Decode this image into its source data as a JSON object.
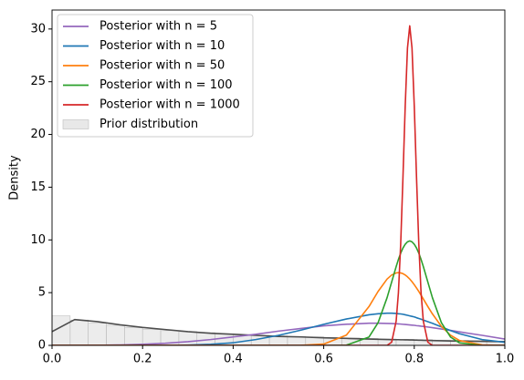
{
  "chart_data": {
    "type": "line",
    "ylabel": "Density",
    "xlim": [
      0,
      1
    ],
    "ylim": [
      0,
      31.8
    ],
    "xticks": [
      {
        "value": 0,
        "label": "0.0"
      },
      {
        "value": 0.2,
        "label": "0.2"
      },
      {
        "value": 0.4,
        "label": "0.4"
      },
      {
        "value": 0.6,
        "label": "0.6"
      },
      {
        "value": 0.8,
        "label": "0.8"
      },
      {
        "value": 1,
        "label": "1.0"
      }
    ],
    "yticks": [
      0,
      5,
      10,
      15,
      20,
      25,
      30
    ],
    "legend": "upper left",
    "x": [
      0,
      0.05,
      0.1,
      0.15,
      0.2,
      0.25,
      0.3,
      0.35,
      0.4,
      0.45,
      0.5,
      0.55,
      0.6,
      0.65,
      0.7,
      0.72,
      0.74,
      0.75,
      0.76,
      0.765,
      0.77,
      0.775,
      0.78,
      0.785,
      0.79,
      0.795,
      0.8,
      0.805,
      0.81,
      0.815,
      0.82,
      0.83,
      0.84,
      0.86,
      0.88,
      0.9,
      0.95,
      1.0
    ],
    "histogram": {
      "name": "Prior distribution",
      "color": "#d9d9d9",
      "edgecolor": "#bdbdbd",
      "bins": [
        0,
        0.04,
        0.08,
        0.12,
        0.16,
        0.2,
        0.24,
        0.28,
        0.32,
        0.36,
        0.4,
        0.44,
        0.48,
        0.52,
        0.56,
        0.6,
        0.64,
        0.68,
        0.72,
        0.76,
        0.8,
        0.84,
        0.88,
        0.92,
        0.96,
        1.0
      ],
      "values": [
        2.8,
        2.4,
        2.1,
        1.9,
        1.7,
        1.5,
        1.4,
        1.3,
        1.2,
        1.1,
        1.0,
        0.95,
        0.9,
        0.85,
        0.8,
        0.75,
        0.7,
        0.65,
        0.6,
        0.57,
        0.54,
        0.5,
        0.47,
        0.44,
        0.4
      ]
    },
    "series": [
      {
        "color": "#4d4d4d",
        "values": [
          1.3,
          2.45,
          2.25,
          1.95,
          1.7,
          1.5,
          1.3,
          1.15,
          1.05,
          0.95,
          0.85,
          0.8,
          0.72,
          0.66,
          0.6,
          0.58,
          0.56,
          0.55,
          0.54,
          0.54,
          0.53,
          0.53,
          0.52,
          0.52,
          0.51,
          0.51,
          0.5,
          0.5,
          0.49,
          0.49,
          0.48,
          0.47,
          0.46,
          0.44,
          0.42,
          0.41,
          0.38,
          0.35
        ]
      },
      {
        "name": "Posterior with n = 5",
        "color": "#9467bd",
        "values": [
          0,
          0,
          0.01,
          0.04,
          0.1,
          0.2,
          0.35,
          0.55,
          0.8,
          1.05,
          1.35,
          1.6,
          1.85,
          2.0,
          2.1,
          2.1,
          2.08,
          2.07,
          2.05,
          2.04,
          2.02,
          2.0,
          1.98,
          1.96,
          1.94,
          1.92,
          1.9,
          1.87,
          1.85,
          1.82,
          1.8,
          1.74,
          1.68,
          1.55,
          1.42,
          1.28,
          0.95,
          0.6
        ]
      },
      {
        "name": "Posterior with n = 10",
        "color": "#1f77b4",
        "values": [
          0,
          0,
          0,
          0,
          0,
          0,
          0.03,
          0.1,
          0.25,
          0.55,
          0.95,
          1.45,
          2.0,
          2.5,
          2.9,
          3.0,
          3.05,
          3.05,
          3.03,
          3.0,
          2.98,
          2.95,
          2.9,
          2.85,
          2.8,
          2.75,
          2.7,
          2.62,
          2.55,
          2.48,
          2.4,
          2.25,
          2.1,
          1.75,
          1.4,
          1.1,
          0.55,
          0.3
        ]
      },
      {
        "name": "Posterior with n = 50",
        "color": "#ff7f0e",
        "values": [
          0,
          0,
          0,
          0,
          0,
          0,
          0,
          0,
          0,
          0,
          0,
          0.01,
          0.12,
          0.97,
          3.68,
          5.11,
          6.29,
          6.67,
          6.87,
          6.9,
          6.87,
          6.8,
          6.67,
          6.5,
          6.29,
          6.04,
          5.75,
          5.44,
          5.11,
          4.76,
          4.4,
          3.68,
          2.99,
          1.8,
          0.97,
          0.46,
          0.04,
          0
        ]
      },
      {
        "name": "Posterior with n = 100",
        "color": "#2ca02c",
        "values": [
          0,
          0,
          0,
          0,
          0,
          0,
          0,
          0,
          0,
          0,
          0,
          0,
          0,
          0.02,
          0.79,
          2.14,
          4.53,
          6.0,
          7.47,
          8.15,
          8.74,
          9.23,
          9.59,
          9.82,
          9.9,
          9.82,
          9.59,
          9.23,
          8.74,
          8.15,
          7.47,
          6.0,
          4.53,
          2.14,
          0.79,
          0.23,
          0,
          0
        ]
      },
      {
        "name": "Posterior with n = 1000",
        "color": "#d62728",
        "values": [
          0,
          0,
          0,
          0,
          0,
          0,
          0,
          0,
          0,
          0,
          0,
          0,
          0,
          0,
          0,
          0,
          0,
          0.3,
          2.3,
          5.0,
          9.6,
          15.9,
          22.7,
          28.2,
          30.3,
          28.2,
          22.7,
          15.9,
          9.6,
          5.0,
          2.3,
          0.3,
          0,
          0,
          0,
          0,
          0,
          0
        ]
      }
    ]
  }
}
